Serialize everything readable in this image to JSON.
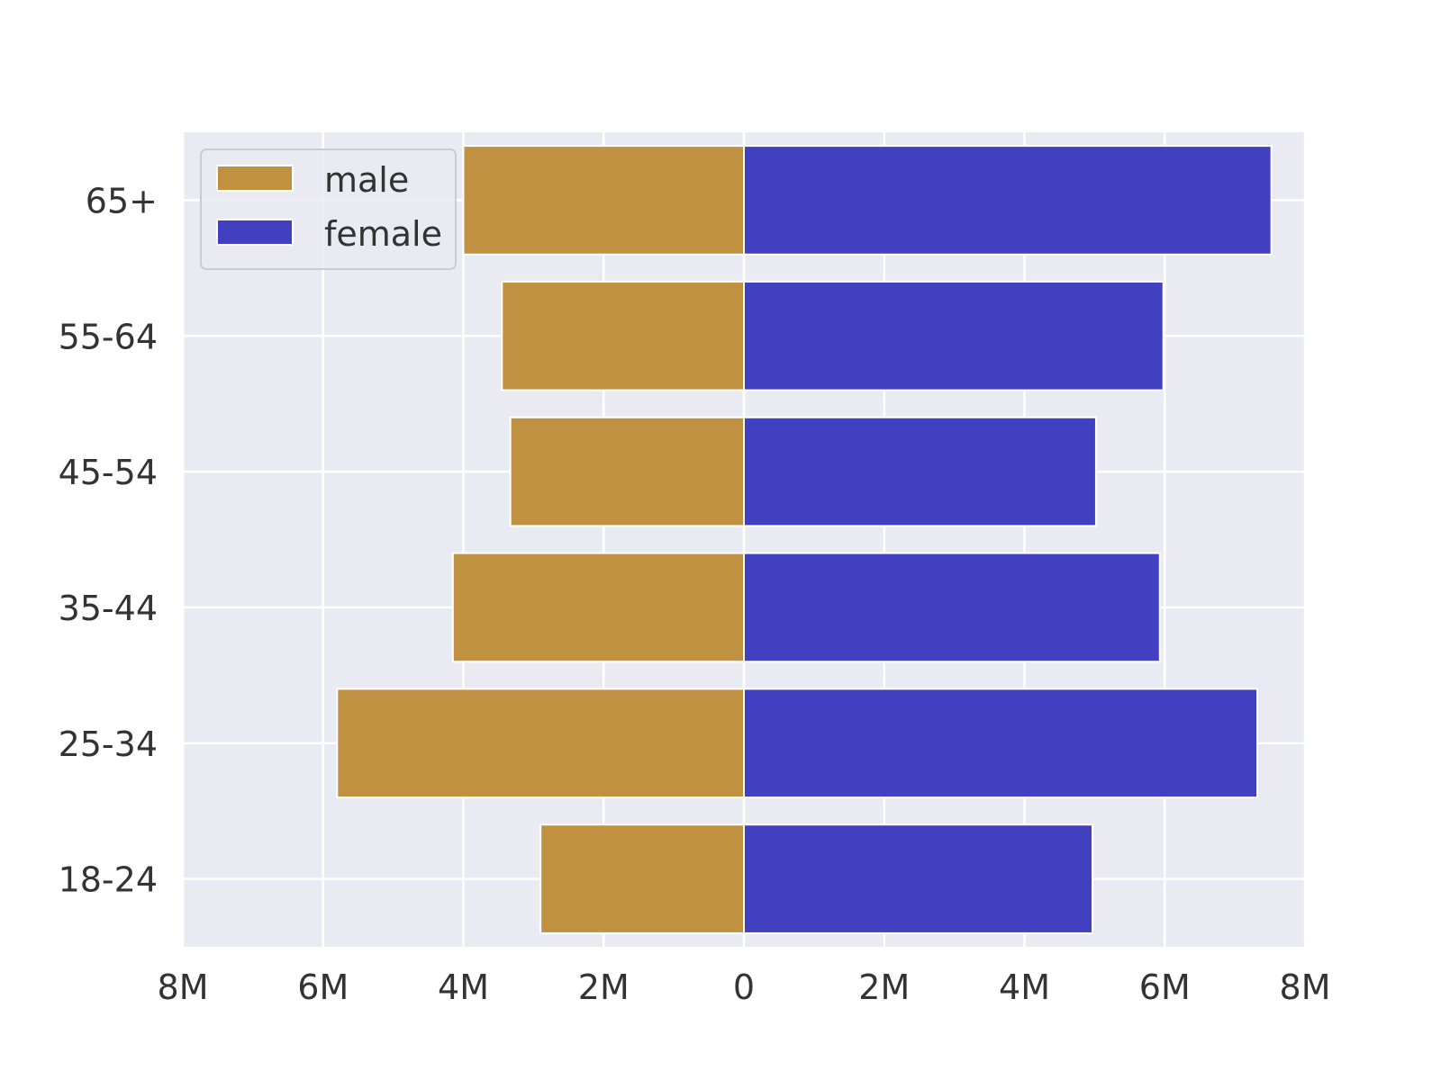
{
  "chart_data": {
    "type": "bar",
    "orientation": "horizontal",
    "layout": "diverging",
    "categories": [
      "18-24",
      "25-34",
      "35-44",
      "45-54",
      "55-64",
      "65+"
    ],
    "series": [
      {
        "name": "male",
        "color": "#BF9140",
        "values": [
          2900000,
          5800000,
          4150000,
          3330000,
          3450000,
          4000000
        ]
      },
      {
        "name": "female",
        "color": "#4040C0",
        "values": [
          4970000,
          7320000,
          5930000,
          5020000,
          5980000,
          7520000
        ]
      }
    ],
    "xlim": [
      -8000000,
      8000000
    ],
    "xticks": [
      -8000000,
      -6000000,
      -4000000,
      -2000000,
      0,
      2000000,
      4000000,
      6000000,
      8000000
    ],
    "xtick_labels": [
      "8M",
      "6M",
      "4M",
      "2M",
      "0",
      "2M",
      "4M",
      "6M",
      "8M"
    ],
    "grid": true,
    "background": "#EAEAF2",
    "legend": {
      "position": "top-left",
      "entries": [
        "male",
        "female"
      ]
    },
    "title": "",
    "xlabel": "",
    "ylabel": ""
  }
}
